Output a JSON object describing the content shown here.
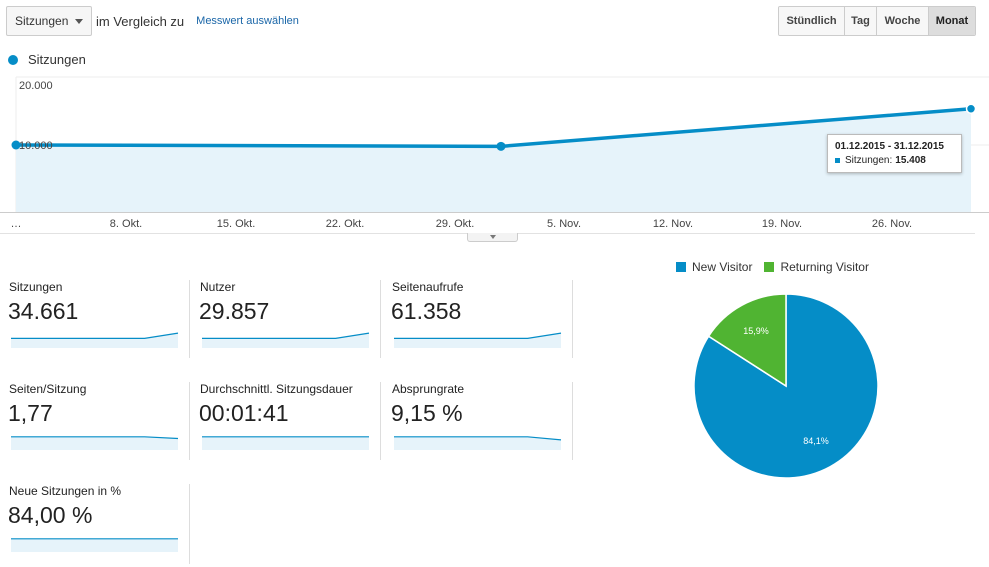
{
  "toolbar": {
    "metric_select": "Sitzungen",
    "compare_text": "im Vergleich zu",
    "compare_link": "Messwert auswählen",
    "granularity": [
      {
        "label": "Stündlich",
        "active": false
      },
      {
        "label": "Tag",
        "active": false
      },
      {
        "label": "Woche",
        "active": false
      },
      {
        "label": "Monat",
        "active": true
      }
    ]
  },
  "chart_data": [
    {
      "type": "area",
      "series": [
        {
          "name": "Sitzungen",
          "x": [
            "2015-10-01",
            "2015-11-01",
            "2015-12-01"
          ],
          "values": [
            10000,
            9800,
            15408
          ]
        }
      ],
      "x_tick_labels": [
        "…",
        "8. Okt.",
        "15. Okt.",
        "22. Okt.",
        "29. Okt.",
        "5. Nov.",
        "12. Nov.",
        "19. Nov.",
        "26. Nov."
      ],
      "y_tick_labels": [
        "20.000",
        "10.000"
      ],
      "ylim": [
        0,
        20000
      ],
      "grid": true,
      "color": "#058dc7",
      "legend": "top-left",
      "tooltip": {
        "date": "01.12.2015 - 31.12.2015",
        "label": "Sitzungen:",
        "value": "15.408"
      }
    },
    {
      "type": "pie",
      "series": [
        {
          "name": "New Visitor",
          "value": 84.1,
          "label": "84,1%",
          "color": "#058dc7"
        },
        {
          "name": "Returning Visitor",
          "value": 15.9,
          "label": "15,9%",
          "color": "#50b432"
        }
      ],
      "legend": "top"
    }
  ],
  "tiles": [
    {
      "label": "Sitzungen",
      "value": "34.661",
      "spark": [
        0.4,
        0.4,
        0.4,
        0.4,
        0.4,
        0.62
      ]
    },
    {
      "label": "Nutzer",
      "value": "29.857",
      "spark": [
        0.4,
        0.4,
        0.4,
        0.4,
        0.4,
        0.62
      ]
    },
    {
      "label": "Seitenaufrufe",
      "value": "61.358",
      "spark": [
        0.4,
        0.4,
        0.4,
        0.4,
        0.4,
        0.62
      ]
    },
    {
      "label": "Seiten/Sitzung",
      "value": "1,77",
      "spark": [
        0.55,
        0.55,
        0.55,
        0.55,
        0.55,
        0.48
      ]
    },
    {
      "label": "Durchschnittl. Sitzungsdauer",
      "value": "00:01:41",
      "spark": [
        0.55,
        0.55,
        0.55,
        0.55,
        0.55,
        0.55
      ]
    },
    {
      "label": "Absprungrate",
      "value": "9,15 %",
      "spark": [
        0.55,
        0.55,
        0.55,
        0.55,
        0.55,
        0.42
      ]
    },
    {
      "label": "Neue Sitzungen in %",
      "value": "84,00 %",
      "spark": [
        0.55,
        0.55,
        0.55,
        0.55,
        0.55,
        0.55
      ]
    }
  ]
}
